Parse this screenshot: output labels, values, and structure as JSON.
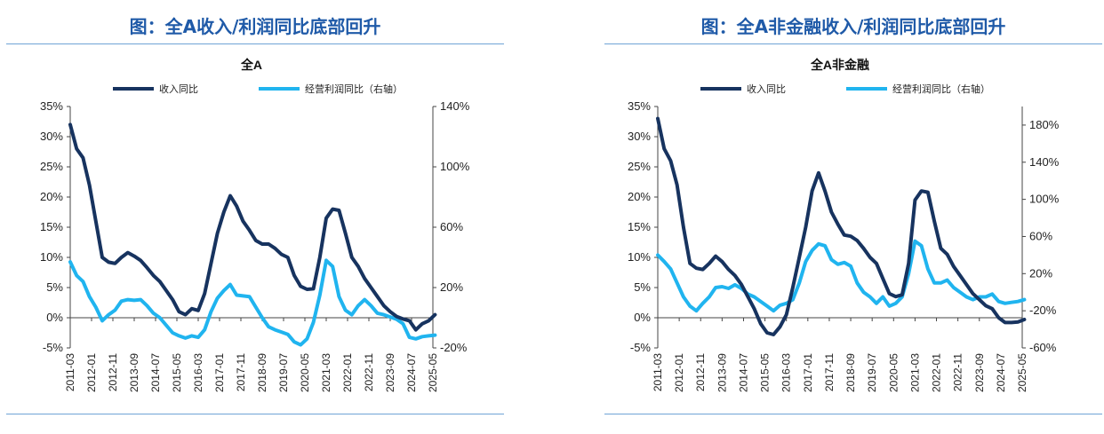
{
  "colors": {
    "title": "#1f5aa8",
    "rule": "#6fa4d6",
    "revenue": "#17335f",
    "profit": "#20b4ef",
    "text": "#222222"
  },
  "chart_data": [
    {
      "type": "line",
      "figure_title": "图：全A收入/利润同比底部回升",
      "title": "全A",
      "legend": [
        "收入同比",
        "经营利润同比（右轴）"
      ],
      "legend_position": "top",
      "x_tick_labels": [
        "2011-03",
        "2012-01",
        "2012-11",
        "2013-09",
        "2014-07",
        "2015-05",
        "2016-03",
        "2017-01",
        "2017-11",
        "2018-09",
        "2019-07",
        "2020-05",
        "2021-03",
        "2022-01",
        "2022-11",
        "2023-09",
        "2024-07",
        "2025-05"
      ],
      "ylim_left": [
        -5,
        35
      ],
      "ylim_right": [
        -20,
        140
      ],
      "y_left_ticks": [
        "-5%",
        "0%",
        "5%",
        "10%",
        "15%",
        "20%",
        "25%",
        "30%",
        "35%"
      ],
      "y_right_ticks": [
        "-20%",
        "20%",
        "60%",
        "100%",
        "140%"
      ],
      "grid": false,
      "series": [
        {
          "name": "收入同比",
          "axis": "left",
          "x": [
            "2011-03",
            "2011-06",
            "2011-09",
            "2011-12",
            "2012-03",
            "2012-06",
            "2012-09",
            "2012-12",
            "2013-03",
            "2013-06",
            "2013-09",
            "2013-12",
            "2014-03",
            "2014-06",
            "2014-09",
            "2014-12",
            "2015-03",
            "2015-06",
            "2015-09",
            "2015-12",
            "2016-03",
            "2016-06",
            "2016-09",
            "2016-12",
            "2017-03",
            "2017-06",
            "2017-09",
            "2017-12",
            "2018-03",
            "2018-06",
            "2018-09",
            "2018-12",
            "2019-03",
            "2019-06",
            "2019-09",
            "2019-12",
            "2020-03",
            "2020-06",
            "2020-09",
            "2020-12",
            "2021-03",
            "2021-06",
            "2021-09",
            "2021-12",
            "2022-03",
            "2022-06",
            "2022-09",
            "2022-12",
            "2023-03",
            "2023-06",
            "2023-09",
            "2023-12",
            "2024-03",
            "2024-06",
            "2024-09",
            "2024-12",
            "2025-03",
            "2025-06"
          ],
          "values": [
            32,
            28,
            26.5,
            22,
            16,
            10,
            9.2,
            9,
            10,
            10.8,
            10.2,
            9.5,
            8.3,
            7,
            6,
            4.5,
            3,
            1,
            0.5,
            1.5,
            1.2,
            4,
            9,
            14,
            17.5,
            20.2,
            18.5,
            16,
            14.5,
            12.8,
            12.2,
            12.2,
            11.5,
            10.5,
            10,
            7,
            5.2,
            4.7,
            4.8,
            10,
            16.5,
            18,
            17.8,
            14,
            10,
            8.5,
            6.5,
            5,
            3.5,
            2,
            1,
            0.2,
            -0.2,
            -0.5,
            -2,
            -1,
            -0.5,
            0.5
          ]
        },
        {
          "name": "经营利润同比（右轴）",
          "axis": "right",
          "x": [
            "2011-03",
            "2011-06",
            "2011-09",
            "2011-12",
            "2012-03",
            "2012-06",
            "2012-09",
            "2012-12",
            "2013-03",
            "2013-06",
            "2013-09",
            "2013-12",
            "2014-03",
            "2014-06",
            "2014-09",
            "2014-12",
            "2015-03",
            "2015-06",
            "2015-09",
            "2015-12",
            "2016-03",
            "2016-06",
            "2016-09",
            "2016-12",
            "2017-03",
            "2017-06",
            "2017-09",
            "2017-12",
            "2018-03",
            "2018-06",
            "2018-09",
            "2018-12",
            "2019-03",
            "2019-06",
            "2019-09",
            "2019-12",
            "2020-03",
            "2020-06",
            "2020-09",
            "2020-12",
            "2021-03",
            "2021-06",
            "2021-09",
            "2021-12",
            "2022-03",
            "2022-06",
            "2022-09",
            "2022-12",
            "2023-03",
            "2023-06",
            "2023-09",
            "2023-12",
            "2024-03",
            "2024-06",
            "2024-09",
            "2024-12",
            "2025-03",
            "2025-06"
          ],
          "values": [
            37,
            28,
            24,
            14,
            7,
            -2,
            2,
            5,
            11,
            12,
            11.5,
            12,
            8,
            3,
            0,
            -5,
            -10,
            -12,
            -13.5,
            -12,
            -13,
            -8,
            4,
            13,
            18,
            22,
            15,
            14.5,
            14,
            7,
            0,
            -6,
            -8,
            -9.5,
            -11,
            -16,
            -18,
            -14,
            -3,
            15,
            38,
            34,
            14,
            5,
            2,
            8,
            12,
            8,
            3,
            2,
            0.5,
            -1,
            -4,
            -13,
            -14,
            -12.5,
            -12,
            -11.5
          ]
        }
      ]
    },
    {
      "type": "line",
      "figure_title": "图：全A非金融收入/利润同比底部回升",
      "title": "全A非金融",
      "legend": [
        "收入同比",
        "经营利润同比（右轴）"
      ],
      "legend_position": "top",
      "x_tick_labels": [
        "2011-03",
        "2012-01",
        "2012-11",
        "2013-09",
        "2014-07",
        "2015-05",
        "2016-03",
        "2017-01",
        "2017-11",
        "2018-09",
        "2019-07",
        "2020-05",
        "2021-03",
        "2022-01",
        "2022-11",
        "2023-09",
        "2024-07",
        "2025-05"
      ],
      "ylim_left": [
        -5,
        35
      ],
      "ylim_right": [
        -60,
        200
      ],
      "y_left_ticks": [
        "-5%",
        "0%",
        "5%",
        "10%",
        "15%",
        "20%",
        "25%",
        "30%",
        "35%"
      ],
      "y_right_ticks": [
        "-60%",
        "-20%",
        "20%",
        "60%",
        "100%",
        "140%",
        "180%"
      ],
      "grid": false,
      "series": [
        {
          "name": "收入同比",
          "axis": "left",
          "x": [
            "2011-03",
            "2011-06",
            "2011-09",
            "2011-12",
            "2012-03",
            "2012-06",
            "2012-09",
            "2012-12",
            "2013-03",
            "2013-06",
            "2013-09",
            "2013-12",
            "2014-03",
            "2014-06",
            "2014-09",
            "2014-12",
            "2015-03",
            "2015-06",
            "2015-09",
            "2015-12",
            "2016-03",
            "2016-06",
            "2016-09",
            "2016-12",
            "2017-03",
            "2017-06",
            "2017-09",
            "2017-12",
            "2018-03",
            "2018-06",
            "2018-09",
            "2018-12",
            "2019-03",
            "2019-06",
            "2019-09",
            "2019-12",
            "2020-03",
            "2020-06",
            "2020-09",
            "2020-12",
            "2021-03",
            "2021-06",
            "2021-09",
            "2021-12",
            "2022-03",
            "2022-06",
            "2022-09",
            "2022-12",
            "2023-03",
            "2023-06",
            "2023-09",
            "2023-12",
            "2024-03",
            "2024-06",
            "2024-09",
            "2024-12",
            "2025-03",
            "2025-06"
          ],
          "values": [
            33,
            28,
            26,
            22,
            15,
            9,
            8.2,
            8,
            9,
            10.2,
            9.3,
            8,
            7,
            5.5,
            3.5,
            1.5,
            -1,
            -2.5,
            -2.8,
            -1.5,
            0.5,
            5,
            10,
            15,
            21,
            24,
            21,
            17.5,
            15.5,
            13.7,
            13.5,
            12.8,
            11.5,
            10,
            9,
            6.5,
            4,
            3.5,
            3.8,
            9,
            19.5,
            21,
            20.8,
            16,
            11.5,
            10.5,
            8.5,
            7,
            5.5,
            4,
            3,
            2,
            1.5,
            0,
            -0.8,
            -0.8,
            -0.7,
            -0.3
          ]
        },
        {
          "name": "经营利润同比（右轴）",
          "axis": "right",
          "x": [
            "2011-03",
            "2011-06",
            "2011-09",
            "2011-12",
            "2012-03",
            "2012-06",
            "2012-09",
            "2012-12",
            "2013-03",
            "2013-06",
            "2013-09",
            "2013-12",
            "2014-03",
            "2014-06",
            "2014-09",
            "2014-12",
            "2015-03",
            "2015-06",
            "2015-09",
            "2015-12",
            "2016-03",
            "2016-06",
            "2016-09",
            "2016-12",
            "2017-03",
            "2017-06",
            "2017-09",
            "2017-12",
            "2018-03",
            "2018-06",
            "2018-09",
            "2018-12",
            "2019-03",
            "2019-06",
            "2019-09",
            "2019-12",
            "2020-03",
            "2020-06",
            "2020-09",
            "2020-12",
            "2021-03",
            "2021-06",
            "2021-09",
            "2021-12",
            "2022-03",
            "2022-06",
            "2022-09",
            "2022-12",
            "2023-03",
            "2023-06",
            "2023-09",
            "2023-12",
            "2024-03",
            "2024-06",
            "2024-09",
            "2024-12",
            "2025-03",
            "2025-06"
          ],
          "values": [
            40,
            33,
            25,
            10,
            -5,
            -15,
            -20,
            -12,
            -5,
            5,
            6,
            4,
            8,
            4,
            -2,
            -5,
            -10,
            -15,
            -20,
            -14,
            -12,
            -8,
            10,
            33,
            45,
            52,
            50,
            35,
            30,
            32,
            28,
            10,
            0,
            -5,
            -12,
            -5,
            -15,
            -12,
            -5,
            20,
            55,
            50,
            25,
            10,
            10,
            13,
            5,
            0,
            -5,
            -8,
            -5,
            -5,
            -2,
            -10,
            -12,
            -11,
            -10,
            -8
          ]
        }
      ]
    }
  ]
}
